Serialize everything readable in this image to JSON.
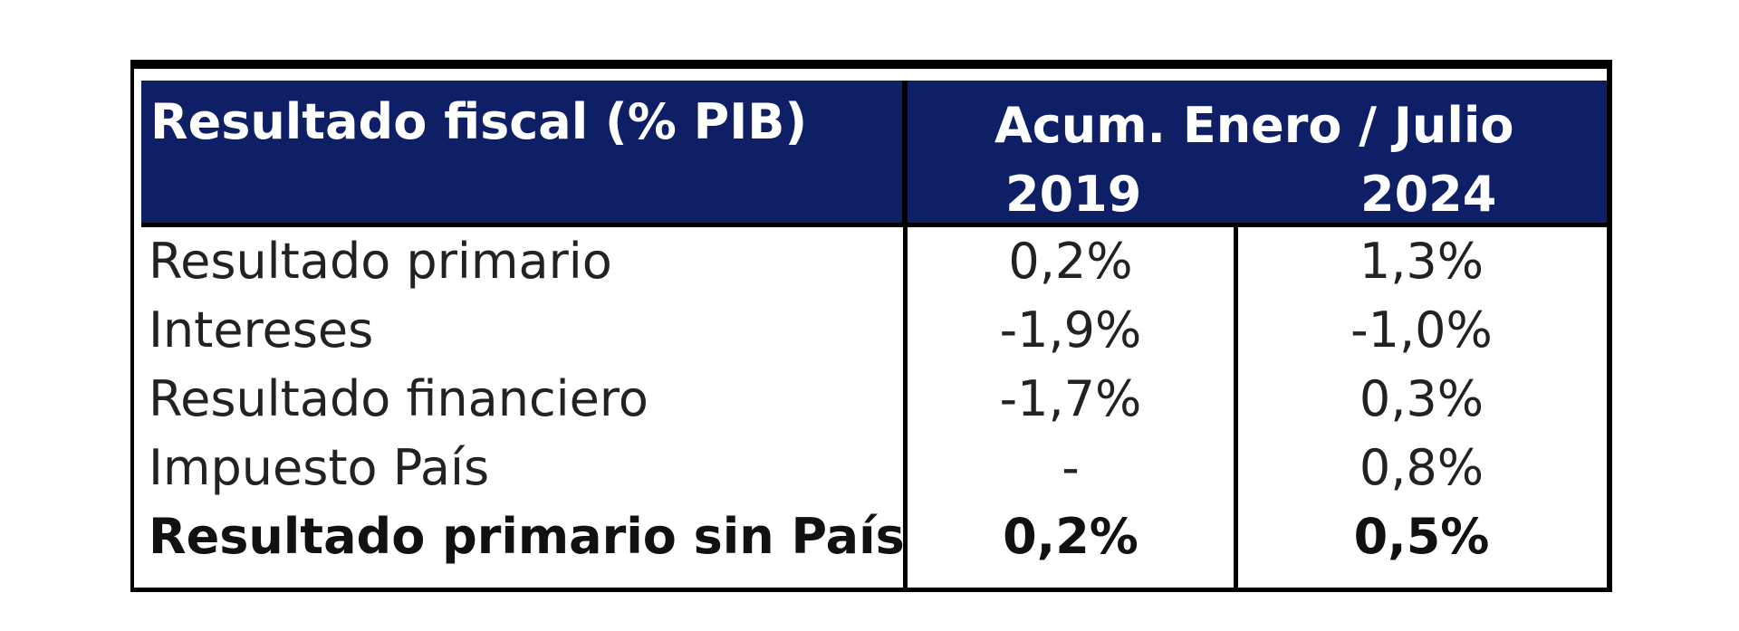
{
  "chart_data": {
    "type": "table",
    "title": "Resultado fiscal (% PIB)",
    "period_header": "Acum. Enero / Julio",
    "columns": [
      "2019",
      "2024"
    ],
    "rows": [
      {
        "label": "Resultado primario",
        "values": [
          "0,2%",
          "1,3%"
        ],
        "bold": false
      },
      {
        "label": "Intereses",
        "values": [
          "-1,9%",
          "-1,0%"
        ],
        "bold": false
      },
      {
        "label": "Resultado financiero",
        "values": [
          "-1,7%",
          "0,3%"
        ],
        "bold": false
      },
      {
        "label": "Impuesto País",
        "values": [
          "-",
          "0,8%"
        ],
        "bold": false
      },
      {
        "label": "Resultado primario sin País",
        "values": [
          "0,2%",
          "0,5%"
        ],
        "bold": true
      }
    ],
    "colors": {
      "header_background": "#0f1f66",
      "header_text": "#ffffff",
      "border": "#000000"
    }
  }
}
